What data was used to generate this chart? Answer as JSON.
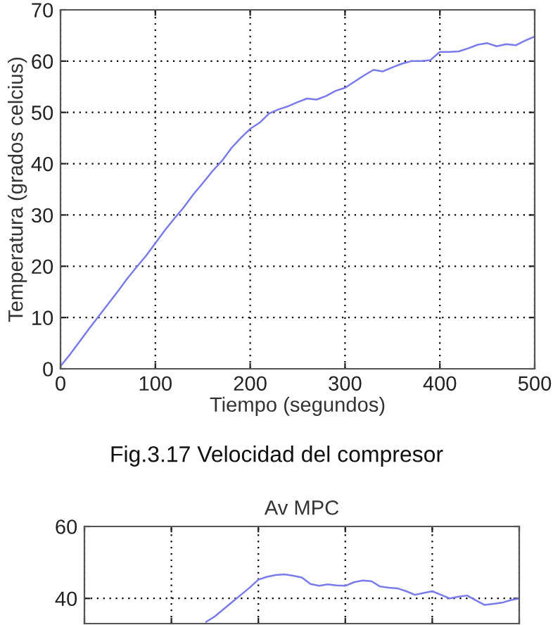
{
  "chart_data": [
    {
      "type": "line",
      "xlabel": "Tiempo (segundos)",
      "ylabel": "Temperatura (grados celcius)",
      "annotations": [
        "Fig.3.17 Velocidad del compresor"
      ],
      "x": [
        0,
        10,
        20,
        30,
        40,
        50,
        60,
        70,
        80,
        90,
        100,
        110,
        120,
        130,
        140,
        150,
        160,
        170,
        180,
        190,
        200,
        210,
        220,
        230,
        240,
        250,
        260,
        270,
        280,
        290,
        300,
        310,
        320,
        330,
        340,
        350,
        360,
        370,
        380,
        390,
        400,
        410,
        420,
        430,
        440,
        450,
        460,
        470,
        480,
        490,
        500
      ],
      "series": [
        {
          "color": "#7b7bea",
          "values": [
            0.5,
            2.8,
            5.3,
            7.8,
            10.2,
            12.6,
            15,
            17.5,
            19.8,
            22,
            24.5,
            27,
            29.3,
            31.5,
            34,
            36.2,
            38.5,
            40.5,
            43,
            45,
            46.8,
            48,
            49.8,
            50.6,
            51.2,
            52,
            52.7,
            52.5,
            53.2,
            54.2,
            54.8,
            56,
            57.2,
            58.3,
            58,
            58.8,
            59.5,
            60,
            60,
            60.2,
            61.8,
            61.8,
            61.9,
            62.5,
            63.2,
            63.5,
            62.9,
            63.3,
            63.1,
            64,
            64.8
          ]
        }
      ],
      "xlim": [
        0,
        500
      ],
      "ylim": [
        0,
        70
      ],
      "xticks": [
        0,
        100,
        200,
        300,
        400,
        500
      ],
      "yticks": [
        0,
        10,
        20,
        30,
        40,
        50,
        60,
        70
      ],
      "grid": true,
      "line_style": "solid"
    },
    {
      "type": "line",
      "title": "Av MPC",
      "categories": [
        null,
        null,
        null,
        null,
        null,
        null,
        null,
        null,
        null,
        null,
        null,
        null,
        null,
        null,
        null,
        null,
        null,
        null,
        null,
        null,
        null,
        null,
        null,
        null,
        null,
        null,
        null,
        null,
        null,
        null,
        null,
        null,
        null,
        null,
        null,
        null,
        null,
        null,
        null,
        null,
        null,
        null,
        null,
        null,
        null,
        null,
        null,
        null,
        null,
        null,
        null
      ],
      "series": [
        {
          "color": "#7b7bea",
          "values": [
            null,
            null,
            null,
            null,
            null,
            null,
            null,
            null,
            null,
            null,
            null,
            null,
            null,
            null,
            33.5,
            35,
            37,
            39,
            41,
            43,
            45.2,
            46,
            46.5,
            46.7,
            46.3,
            45.8,
            44,
            43.5,
            43.9,
            43.6,
            43.5,
            44.5,
            45,
            44.8,
            43.3,
            43,
            42.8,
            42,
            41,
            41.5,
            42,
            41,
            40,
            40.5,
            40.8,
            39.5,
            38.2,
            38.5,
            38.8,
            39.5,
            40
          ]
        }
      ],
      "ylim": [
        33,
        60
      ],
      "yticks": [
        40,
        60
      ],
      "tick_labels": "y",
      "grid": true,
      "line_style": "solid"
    }
  ]
}
